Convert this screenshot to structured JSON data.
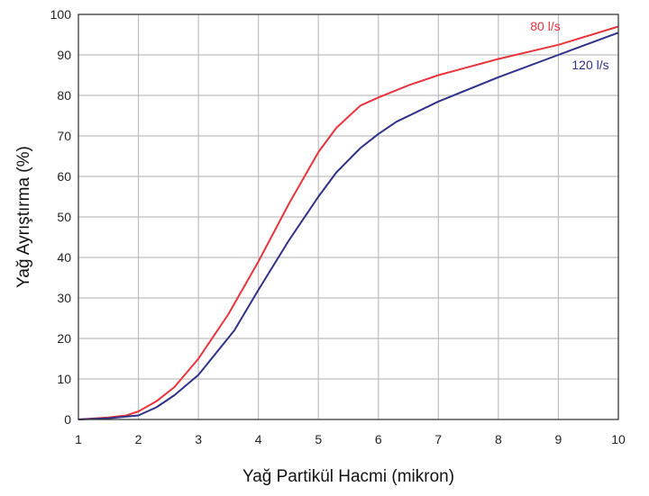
{
  "chart_data": {
    "type": "line",
    "title": "",
    "xlabel": "Yağ Partikül Hacmi (mikron)",
    "ylabel": "Yağ Ayrıştırma (%)",
    "xlim": [
      1,
      10
    ],
    "ylim": [
      0,
      100
    ],
    "x_ticks": [
      1,
      2,
      3,
      4,
      5,
      6,
      7,
      8,
      9,
      10
    ],
    "y_ticks": [
      0,
      10,
      20,
      30,
      40,
      50,
      60,
      70,
      80,
      90,
      100
    ],
    "grid": true,
    "series": [
      {
        "name": "80 l/s",
        "color": "#e8343c",
        "x": [
          1,
          1.5,
          1.8,
          2,
          2.3,
          2.6,
          3,
          3.5,
          4,
          4.5,
          5,
          5.3,
          5.7,
          6,
          6.5,
          7,
          8,
          9,
          10
        ],
        "y": [
          0,
          0.5,
          1,
          2,
          4.5,
          8,
          15,
          26,
          39,
          53,
          66,
          72,
          77.5,
          79.5,
          82.5,
          85,
          89,
          92.5,
          97
        ]
      },
      {
        "name": "120 l/s",
        "color": "#2e3187",
        "x": [
          1,
          1.5,
          2,
          2.3,
          2.6,
          3,
          3.6,
          4,
          4.5,
          5,
          5.3,
          5.7,
          6,
          6.3,
          7,
          8,
          9,
          10
        ],
        "y": [
          0,
          0.3,
          1,
          3,
          6,
          11,
          22,
          32,
          44,
          55,
          61,
          67,
          70.5,
          73.5,
          78.5,
          84.5,
          90,
          95.5
        ]
      }
    ]
  }
}
